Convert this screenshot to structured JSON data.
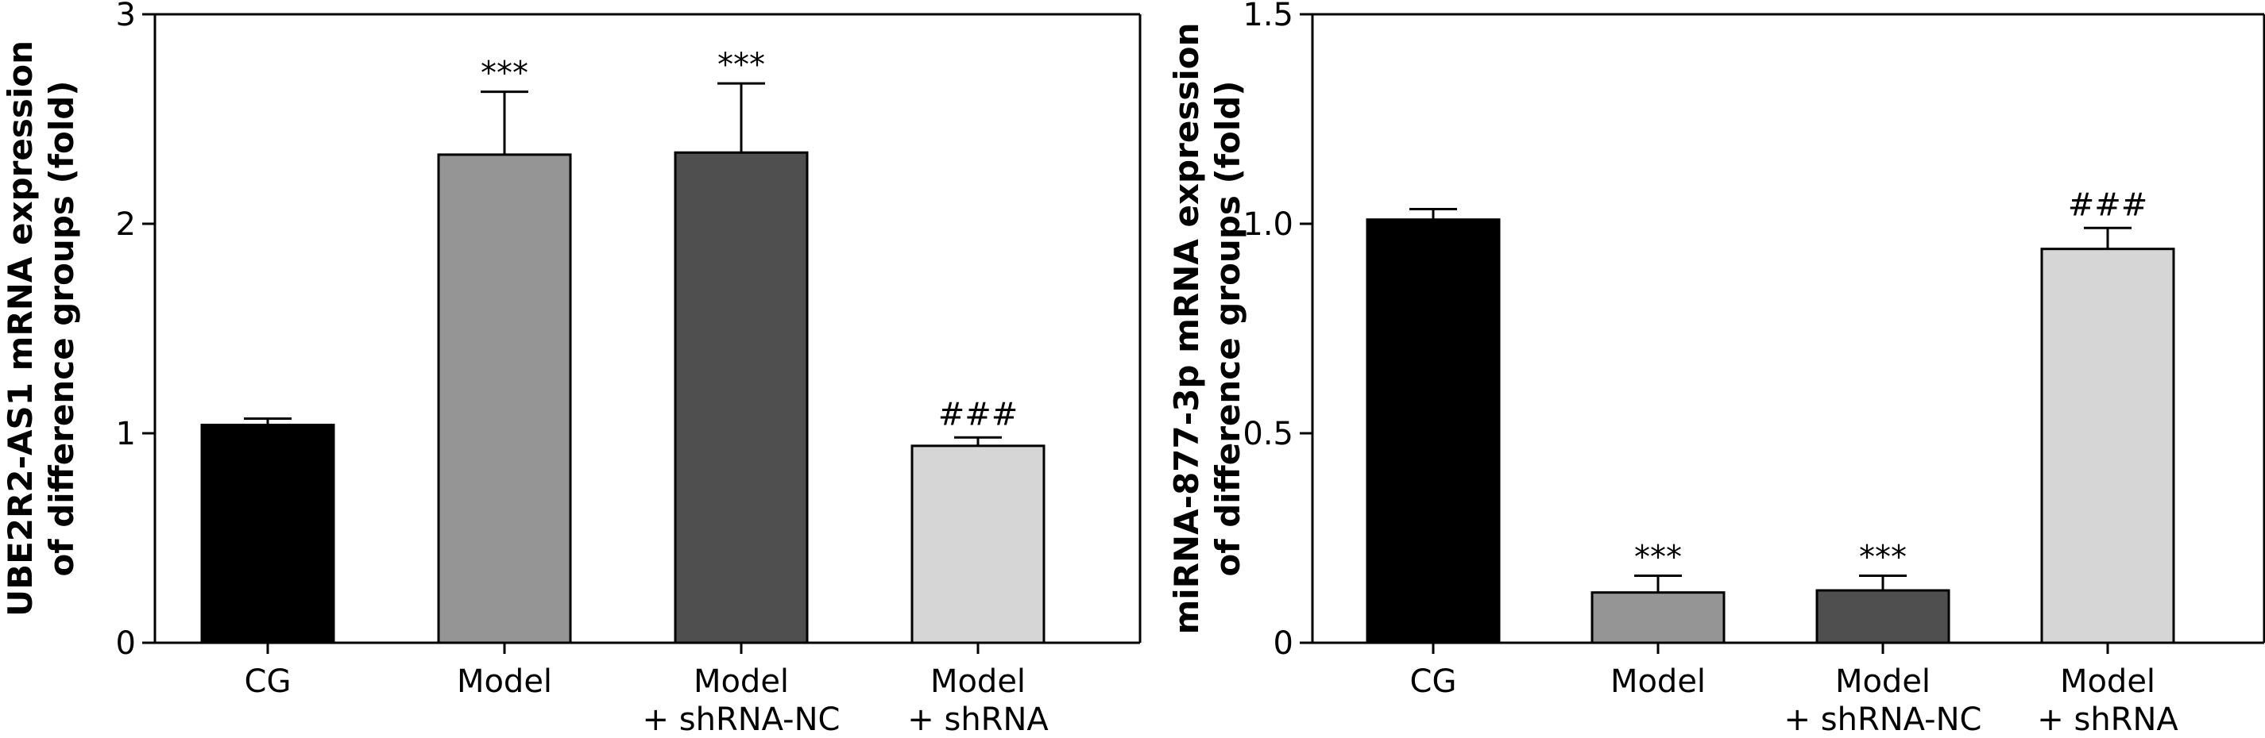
{
  "chart_data": [
    {
      "type": "bar",
      "title": "",
      "xlabel": "",
      "ylabel_lines": [
        "UBE2R2-AS1 mRNA expression",
        "of difference groups (fold)"
      ],
      "ylim": [
        0,
        3
      ],
      "yticks": [
        "0",
        "1",
        "2",
        "3"
      ],
      "ytick_values": [
        0,
        1,
        2,
        3
      ],
      "grid": false,
      "legend": "none",
      "categories": [
        [
          "CG"
        ],
        [
          "Model"
        ],
        [
          "Model",
          "+ shRNA-NC"
        ],
        [
          "Model",
          "+ shRNA"
        ]
      ],
      "values": [
        1.04,
        2.33,
        2.34,
        0.94
      ],
      "errors": [
        0.03,
        0.3,
        0.33,
        0.04
      ],
      "annotations": [
        "",
        "***",
        "***",
        "###"
      ],
      "colors": [
        "#000000",
        "#959595",
        "#4f4f4f",
        "#d6d6d6"
      ]
    },
    {
      "type": "bar",
      "title": "",
      "xlabel": "",
      "ylabel_lines": [
        "miRNA-877-3p mRNA expression",
        "of difference groups (fold)"
      ],
      "ylim": [
        0,
        1.5
      ],
      "yticks": [
        "0",
        "0.5",
        "1.0",
        "1.5"
      ],
      "ytick_values": [
        0,
        0.5,
        1.0,
        1.5
      ],
      "grid": false,
      "legend": "none",
      "categories": [
        [
          "CG"
        ],
        [
          "Model"
        ],
        [
          "Model",
          "+ shRNA-NC"
        ],
        [
          "Model",
          "+ shRNA"
        ]
      ],
      "values": [
        1.01,
        0.12,
        0.125,
        0.94
      ],
      "errors": [
        0.025,
        0.04,
        0.035,
        0.05
      ],
      "annotations": [
        "",
        "***",
        "***",
        "###"
      ],
      "colors": [
        "#000000",
        "#959595",
        "#4f4f4f",
        "#d6d6d6"
      ]
    }
  ]
}
